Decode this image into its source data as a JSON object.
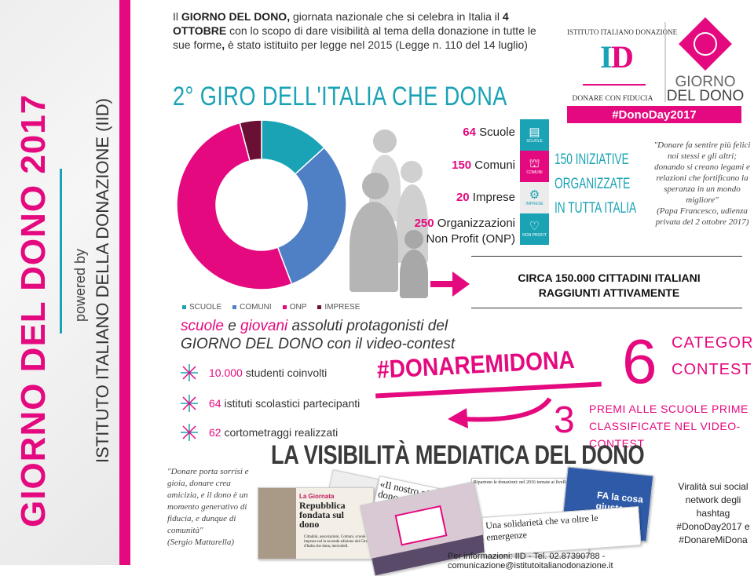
{
  "sidebar": {
    "title": "GIORNO DEL DONO 2017",
    "powered_by": "powered by",
    "organization": "ISTITUTO ITALIANO DELLA DONAZIONE (IID)"
  },
  "intro": {
    "p1": "Il ",
    "b1": "GIORNO DEL DONO,",
    "p2": " giornata nazionale che si celebra in Italia il ",
    "b2": "4 OTTOBRE",
    "p3": " con lo scopo di dare visibilità al tema della donazione in tutte le sue forme",
    "b3": ",",
    "p4": " è stato istituito per legge nel 2015 (Legge n. 110 del 14 luglio)"
  },
  "headline": "2° GIRO DELL'ITALIA CHE DONA",
  "logo": {
    "arc_text": "ISTITUTO ITALIANO DONAZIONE",
    "mark": "ID",
    "tagline": "DONARE CON FIDUCIA",
    "brand1": "GIORNO",
    "brand2": "DEL DONO",
    "hashtag": "#DonoDay2017"
  },
  "chart_data": {
    "type": "pie",
    "donut": true,
    "categories": [
      "SCUOLE",
      "COMUNI",
      "ONP",
      "IMPRESE"
    ],
    "values": [
      64,
      150,
      250,
      20
    ],
    "colors": [
      "#1aa3b5",
      "#4f7fc4",
      "#e5097f",
      "#6b1035"
    ],
    "legend": "bottom"
  },
  "counts": [
    {
      "num": "64",
      "label": " Scuole",
      "tile": "SCUOLE",
      "icon": "book-icon",
      "color": "#1aa3b5"
    },
    {
      "num": "150",
      "label": " Comuni",
      "tile": "COMUNI",
      "icon": "building-icon",
      "color": "#e5097f"
    },
    {
      "num": "20",
      "label": " Imprese",
      "tile": "IMPRESE",
      "icon": "gears-icon",
      "color": "#ececec"
    },
    {
      "num": "250",
      "label": " Organizzazioni",
      "label2": "Non Profit (ONP)",
      "tile": "NON PROFIT",
      "icon": "heart-icon",
      "color": "#1aa3b5"
    }
  ],
  "tile_prefix": "DONODAY",
  "initiatives": {
    "l1": "150 INIZIATIVE",
    "l2": "ORGANIZZATE",
    "l3": "IN TUTTA ITALIA"
  },
  "pope_quote": {
    "text": "\"Donare fa sentire più felici noi stessi e gli altri; donando si creano legami e relazioni che fortificano la speranza in un mondo migliore\"",
    "source": "(Papa Francesco, udienza privata del 2 ottobre 2017)"
  },
  "citizens": {
    "l1": "CIRCA 150.000 CITTADINI ITALIANI",
    "l2": "RAGGIUNTI ATTIVAMENTE"
  },
  "schools": {
    "w1": "scuole",
    "w2": " e ",
    "w3": "giovani",
    "w4": " assoluti protagonisti del",
    "l2a": "GIORNO DEL DONO",
    "l2b": " con il video-contest"
  },
  "stats": [
    {
      "num": "10.000",
      "label": " studenti coinvolti"
    },
    {
      "num": "64",
      "label": " istituti scolastici partecipanti"
    },
    {
      "num": "62",
      "label": " cortometraggi realizzati"
    }
  ],
  "contest": {
    "hashtag": "#DONAREMIDONA",
    "six": "6",
    "cat1": "CATEGORIE",
    "cat2": "CONTEST",
    "three": "3",
    "premi1": "PREMI ALLE SCUOLE PRIME",
    "premi2": "CLASSIFICATE NEL VIDEO-CONTEST"
  },
  "media": {
    "title": "LA VISIBILITÀ MEDIATICA DEL DONO",
    "quote": "\"Donare porta sorrisi e gioia, donare crea amicizia, e il dono è un momento generativo di fiducia, e dunque di comunità\"",
    "quote_source": "(Sergio Mattarella)",
    "clip1_kicker": "La Giornata",
    "clip1_head": "Repubblica fondata sul dono",
    "clip1_body": "Cittadini, associazioni, Comuni, scuole e imprese nel la seconda edizione del Giro d'Italia che dona, mercoledì.",
    "clip2_head": "«Il nostro pianeta dono ricevuto da con",
    "clip3_head": "Ripartono le donazioni: nel 2016 tornate ai livelli pre crisi",
    "clip4_head": "Una solidarietà che va oltre le emergenze",
    "clip5_text": "FA la cosa giusta",
    "viral": "Viralità sui social network degli hashtag #DonoDay2017 e #DonareMiDona"
  },
  "footer": "Per informazioni: IID - Tel. 02.87390788 - comunicazione@istitutoitalianodonazione.it"
}
